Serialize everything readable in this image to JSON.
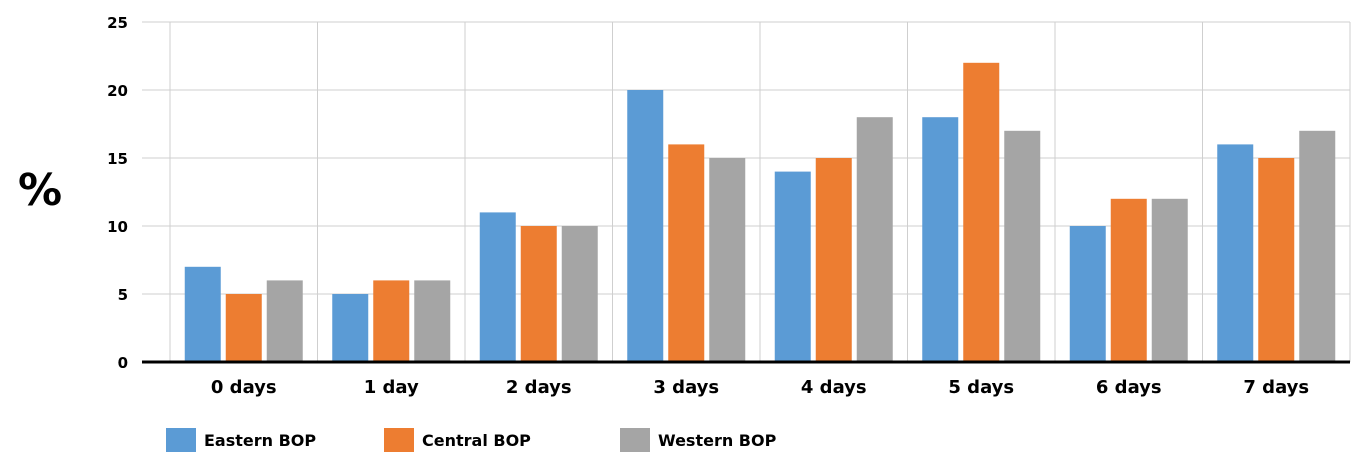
{
  "chart_data": {
    "type": "bar",
    "ylabel": "%",
    "xlabel": "",
    "ylim": [
      0,
      25
    ],
    "yticks": [
      0,
      5,
      10,
      15,
      20,
      25
    ],
    "grid": true,
    "legend_position": "bottom",
    "categories": [
      "0 days",
      "1 day",
      "2 days",
      "3 days",
      "4 days",
      "5 days",
      "6 days",
      "7 days"
    ],
    "series": [
      {
        "name": "Eastern BOP",
        "color": "#5b9bd5",
        "values": [
          7,
          5,
          11,
          20,
          14,
          18,
          10,
          16
        ]
      },
      {
        "name": "Central BOP",
        "color": "#ed7d31",
        "values": [
          5,
          6,
          10,
          16,
          15,
          22,
          12,
          15
        ]
      },
      {
        "name": "Western BOP",
        "color": "#a5a5a5",
        "values": [
          6,
          6,
          10,
          15,
          18,
          17,
          12,
          17
        ]
      }
    ]
  }
}
